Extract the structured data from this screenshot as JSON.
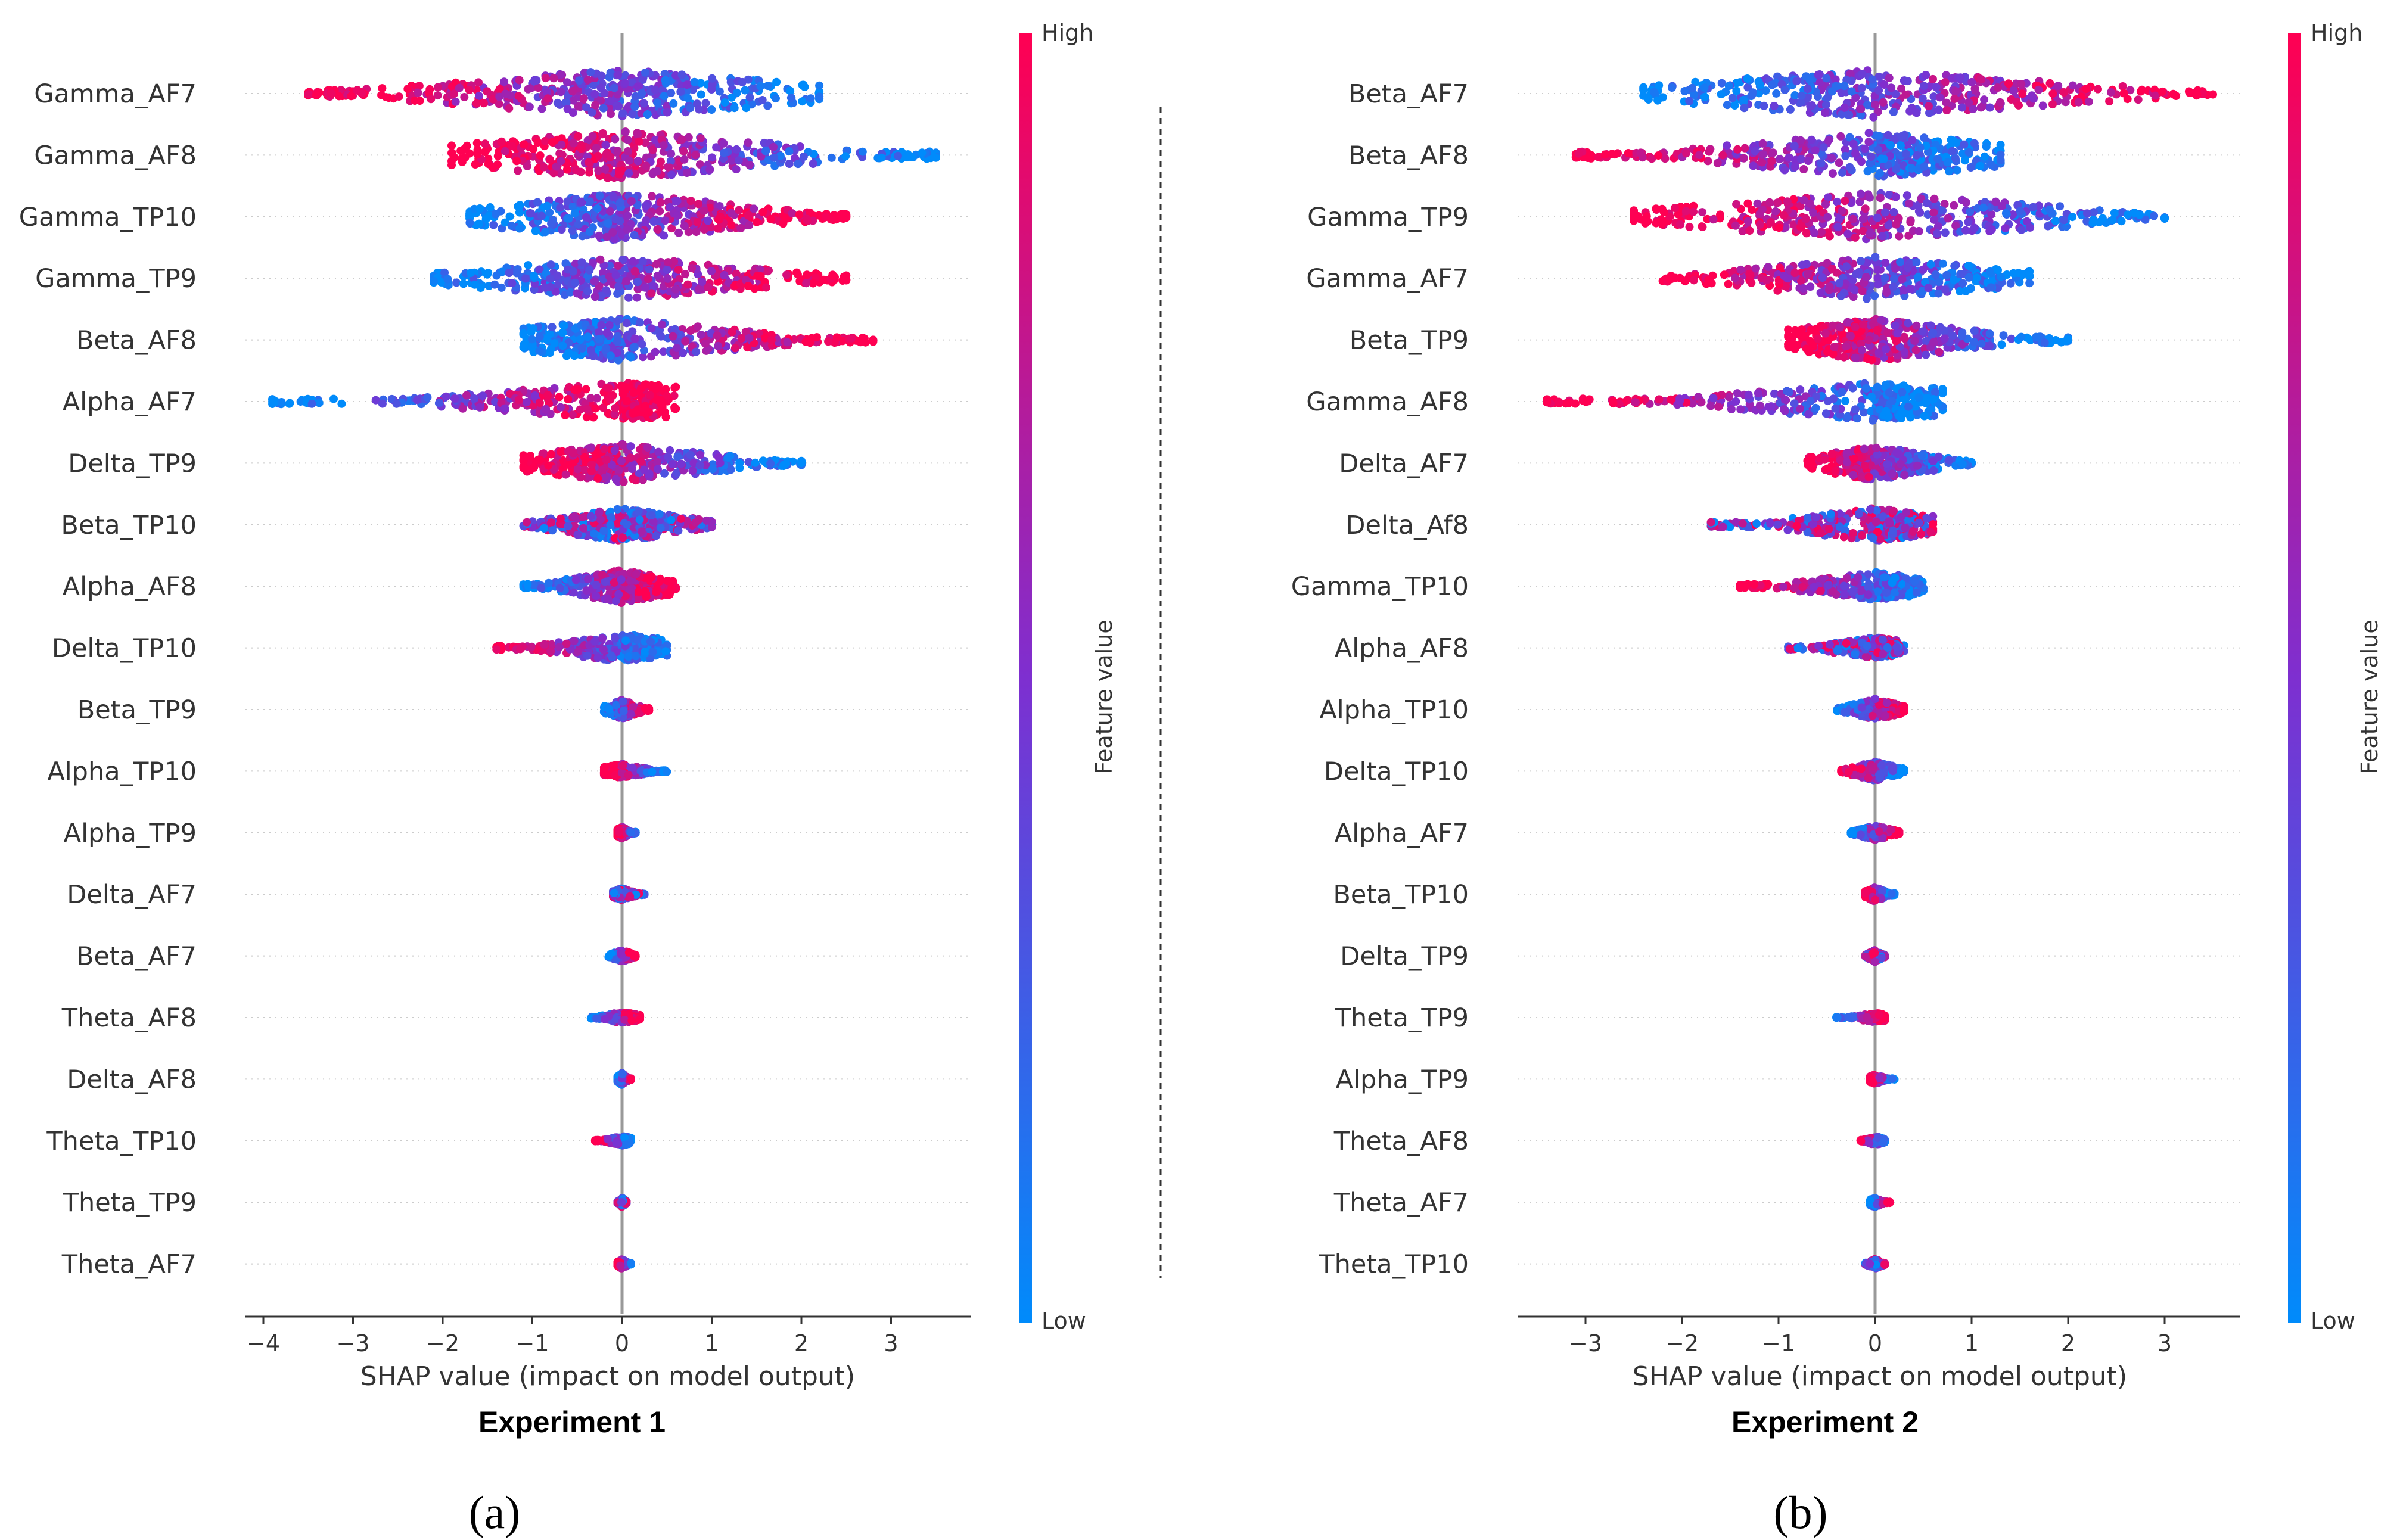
{
  "colors": {
    "low": "#008bfb",
    "mid": "#7e2fd0",
    "high": "#ff0052",
    "axis": "#333333",
    "zero_line": "#999999"
  },
  "panels": [
    {
      "id": "a",
      "label": "(a)",
      "experiment": "Experiment 1"
    },
    {
      "id": "b",
      "label": "(b)",
      "experiment": "Experiment 2"
    }
  ],
  "colorbar": {
    "high": "High",
    "low": "Low",
    "title": "Feature value"
  },
  "chart_data": [
    {
      "type": "scatter",
      "subtype": "shap_beeswarm",
      "title": "Experiment 1",
      "xlabel": "SHAP value (impact on model output)",
      "xlim": [
        -4.2,
        3.9
      ],
      "xticks": [
        -4,
        -3,
        -2,
        -1,
        0,
        1,
        2,
        3
      ],
      "features": [
        {
          "name": "Gamma_AF7",
          "min": -3.5,
          "max": 2.2,
          "low_side": "right",
          "spread": 1.0
        },
        {
          "name": "Gamma_AF8",
          "min": -1.9,
          "max": 3.5,
          "low_side": "right",
          "spread": 1.0
        },
        {
          "name": "Gamma_TP10",
          "min": -1.7,
          "max": 2.5,
          "low_side": "left",
          "spread": 1.0
        },
        {
          "name": "Gamma_TP9",
          "min": -2.1,
          "max": 2.5,
          "low_side": "left",
          "spread": 0.9
        },
        {
          "name": "Beta_AF8",
          "min": -1.1,
          "max": 2.8,
          "low_side": "left",
          "spread": 0.9
        },
        {
          "name": "Alpha_AF7",
          "min": -3.9,
          "max": 0.6,
          "low_side": "left",
          "spread": 0.8
        },
        {
          "name": "Delta_TP9",
          "min": -1.1,
          "max": 2.0,
          "low_side": "right",
          "spread": 0.8
        },
        {
          "name": "Beta_TP10",
          "min": -1.1,
          "max": 1.0,
          "low_side": "mixed",
          "spread": 0.7
        },
        {
          "name": "Alpha_AF8",
          "min": -1.1,
          "max": 0.6,
          "low_side": "left",
          "spread": 0.7
        },
        {
          "name": "Delta_TP10",
          "min": -1.4,
          "max": 0.5,
          "low_side": "right",
          "spread": 0.6
        },
        {
          "name": "Beta_TP9",
          "min": -0.2,
          "max": 0.3,
          "low_side": "left",
          "spread": 0.4
        },
        {
          "name": "Alpha_TP10",
          "min": -0.2,
          "max": 0.5,
          "low_side": "right",
          "spread": 0.3
        },
        {
          "name": "Alpha_TP9",
          "min": -0.05,
          "max": 0.15,
          "low_side": "right",
          "spread": 0.25
        },
        {
          "name": "Delta_AF7",
          "min": -0.1,
          "max": 0.25,
          "low_side": "mixed",
          "spread": 0.25
        },
        {
          "name": "Beta_AF7",
          "min": -0.15,
          "max": 0.15,
          "low_side": "left",
          "spread": 0.25
        },
        {
          "name": "Theta_AF8",
          "min": -0.35,
          "max": 0.2,
          "low_side": "left",
          "spread": 0.25
        },
        {
          "name": "Delta_AF8",
          "min": -0.05,
          "max": 0.1,
          "low_side": "left",
          "spread": 0.25
        },
        {
          "name": "Theta_TP10",
          "min": -0.3,
          "max": 0.1,
          "low_side": "right",
          "spread": 0.2
        },
        {
          "name": "Theta_TP9",
          "min": -0.05,
          "max": 0.05,
          "low_side": "mixed",
          "spread": 0.2
        },
        {
          "name": "Theta_AF7",
          "min": -0.05,
          "max": 0.1,
          "low_side": "right",
          "spread": 0.2
        }
      ]
    },
    {
      "type": "scatter",
      "subtype": "shap_beeswarm",
      "title": "Experiment 2",
      "xlabel": "SHAP value (impact on model output)",
      "xlim": [
        -3.7,
        3.8
      ],
      "xticks": [
        -3,
        -2,
        -1,
        0,
        1,
        2,
        3
      ],
      "features": [
        {
          "name": "Beta_AF7",
          "min": -2.4,
          "max": 3.5,
          "low_side": "left",
          "spread": 1.0
        },
        {
          "name": "Beta_AF8",
          "min": -3.1,
          "max": 1.3,
          "low_side": "right",
          "spread": 0.95
        },
        {
          "name": "Gamma_TP9",
          "min": -2.5,
          "max": 3.0,
          "low_side": "right",
          "spread": 1.0
        },
        {
          "name": "Gamma_AF7",
          "min": -2.2,
          "max": 1.6,
          "low_side": "right",
          "spread": 0.9
        },
        {
          "name": "Beta_TP9",
          "min": -0.9,
          "max": 2.0,
          "low_side": "right",
          "spread": 0.9
        },
        {
          "name": "Gamma_AF8",
          "min": -3.4,
          "max": 0.7,
          "low_side": "right",
          "spread": 0.8
        },
        {
          "name": "Delta_AF7",
          "min": -0.7,
          "max": 1.0,
          "low_side": "right",
          "spread": 0.75
        },
        {
          "name": "Delta_Af8",
          "min": -1.7,
          "max": 0.6,
          "low_side": "mixed",
          "spread": 0.7
        },
        {
          "name": "Gamma_TP10",
          "min": -1.4,
          "max": 0.5,
          "low_side": "right",
          "spread": 0.6
        },
        {
          "name": "Alpha_AF8",
          "min": -0.9,
          "max": 0.3,
          "low_side": "mixed",
          "spread": 0.45
        },
        {
          "name": "Alpha_TP10",
          "min": -0.4,
          "max": 0.3,
          "low_side": "left",
          "spread": 0.45
        },
        {
          "name": "Delta_TP10",
          "min": -0.35,
          "max": 0.3,
          "low_side": "right",
          "spread": 0.4
        },
        {
          "name": "Alpha_AF7",
          "min": -0.25,
          "max": 0.25,
          "low_side": "left",
          "spread": 0.3
        },
        {
          "name": "Beta_TP10",
          "min": -0.1,
          "max": 0.2,
          "low_side": "right",
          "spread": 0.3
        },
        {
          "name": "Delta_TP9",
          "min": -0.1,
          "max": 0.1,
          "low_side": "mixed",
          "spread": 0.25
        },
        {
          "name": "Theta_TP9",
          "min": -0.4,
          "max": 0.1,
          "low_side": "left",
          "spread": 0.2
        },
        {
          "name": "Alpha_TP9",
          "min": -0.05,
          "max": 0.2,
          "low_side": "right",
          "spread": 0.2
        },
        {
          "name": "Theta_AF8",
          "min": -0.15,
          "max": 0.1,
          "low_side": "right",
          "spread": 0.2
        },
        {
          "name": "Theta_AF7",
          "min": -0.05,
          "max": 0.15,
          "low_side": "left",
          "spread": 0.2
        },
        {
          "name": "Theta_TP10",
          "min": -0.1,
          "max": 0.1,
          "low_side": "mixed",
          "spread": 0.2
        }
      ]
    }
  ]
}
